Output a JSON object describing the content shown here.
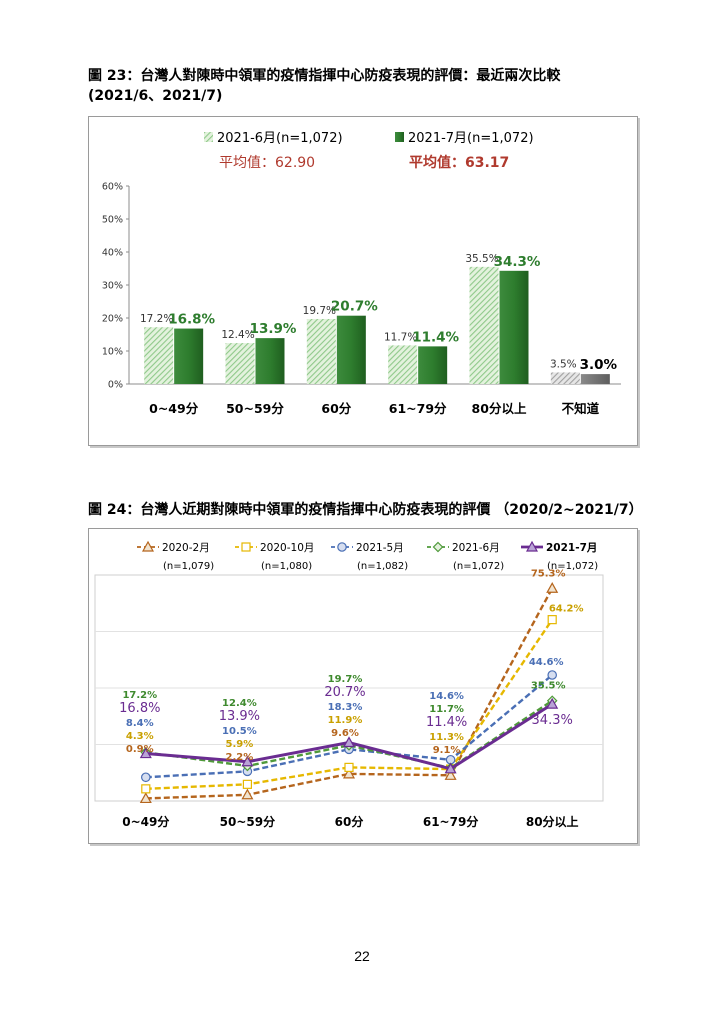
{
  "figure23": {
    "title_line1": "圖 23：台灣人對陳時中領軍的疫情指揮中心防疫表現的評價：最近兩次比較",
    "title_line2": "(2021/6、2021/7)",
    "average_labels": [
      "平均值：62.90",
      "平均值：63.17"
    ],
    "colors": {
      "series1_hatch": "#8fc98a",
      "series2": "#2e7d2e",
      "unknown1": "#a0a0a0",
      "unknown2": "#7a7a7a",
      "avg1": "#b03a2e",
      "avg2": "#b03a2e"
    }
  },
  "figure24": {
    "title": "圖 24：台灣人近期對陳時中領軍的疫情指揮中心防疫表現的評價 （2020/2~2021/7）",
    "sample_sizes": [
      "(n=1,079)",
      "(n=1,080)",
      "(n=1,082)",
      "(n=1,072)",
      "(n=1,072)"
    ]
  },
  "page_number": "22",
  "chart_data": [
    {
      "type": "bar",
      "categories": [
        "0~49分",
        "50~59分",
        "60分",
        "61~79分",
        "80分以上",
        "不知道"
      ],
      "series": [
        {
          "name": "2021-6月(n=1,072)",
          "values": [
            17.2,
            12.4,
            19.7,
            11.7,
            35.5,
            3.5
          ],
          "labels": [
            "17.2%",
            "12.4%",
            "19.7%",
            "11.7%",
            "35.5%",
            "3.5%"
          ],
          "color": "#8fc98a"
        },
        {
          "name": "2021-7月(n=1,072)",
          "values": [
            16.8,
            13.9,
            20.7,
            11.4,
            34.3,
            3.0
          ],
          "labels": [
            "16.8%",
            "13.9%",
            "20.7%",
            "11.4%",
            "34.3%",
            "3.0%"
          ],
          "color": "#2e7d2e"
        }
      ],
      "yticks": [
        "0%",
        "10%",
        "20%",
        "30%",
        "40%",
        "50%",
        "60%"
      ],
      "ylim": [
        0,
        60
      ],
      "legend": "top",
      "grid": false
    },
    {
      "type": "line",
      "categories": [
        "0~49分",
        "50~59分",
        "60分",
        "61~79分",
        "80分以上"
      ],
      "series": [
        {
          "name": "2020-2月",
          "values": [
            0.9,
            2.2,
            9.6,
            9.1,
            75.3
          ],
          "color": "#b5651d",
          "marker": "triangle",
          "label_points": [
            0,
            1,
            2,
            3,
            4
          ],
          "labels": [
            "0.9%",
            "2.2%",
            "9.6%",
            "9.1%",
            "75.3%"
          ]
        },
        {
          "name": "2020-10月",
          "values": [
            4.3,
            5.9,
            11.9,
            11.3,
            64.2
          ],
          "color": "#e6b800",
          "marker": "square",
          "label_points": [
            0,
            1,
            2,
            3,
            4
          ],
          "labels": [
            "4.3%",
            "5.9%",
            "11.9%",
            "11.3%",
            "64.2%"
          ]
        },
        {
          "name": "2021-5月",
          "values": [
            8.4,
            10.5,
            18.3,
            14.6,
            44.6
          ],
          "color": "#4a6fb5",
          "marker": "circle",
          "label_points": [
            0,
            1,
            2,
            3,
            4
          ],
          "labels": [
            "8.4%",
            "10.5%",
            "18.3%",
            "14.6%",
            "44.6%"
          ]
        },
        {
          "name": "2021-6月",
          "values": [
            17.2,
            12.4,
            19.7,
            11.7,
            35.5
          ],
          "color": "#4f9a3a",
          "marker": "diamond",
          "label_points": [
            0,
            1,
            2,
            3,
            4
          ],
          "labels": [
            "17.2%",
            "12.4%",
            "19.7%",
            "11.7%",
            "35.5%"
          ]
        },
        {
          "name": "2021-7月",
          "values": [
            16.8,
            13.9,
            20.7,
            11.4,
            34.3
          ],
          "color": "#6a2c91",
          "marker": "triangle",
          "label_points": [
            0,
            1,
            2,
            3,
            4
          ],
          "labels": [
            "16.8%",
            "13.9%",
            "20.7%",
            "11.4%",
            "34.3%"
          ]
        }
      ],
      "ylim": [
        0,
        80
      ],
      "legend": "top",
      "grid": true
    }
  ]
}
